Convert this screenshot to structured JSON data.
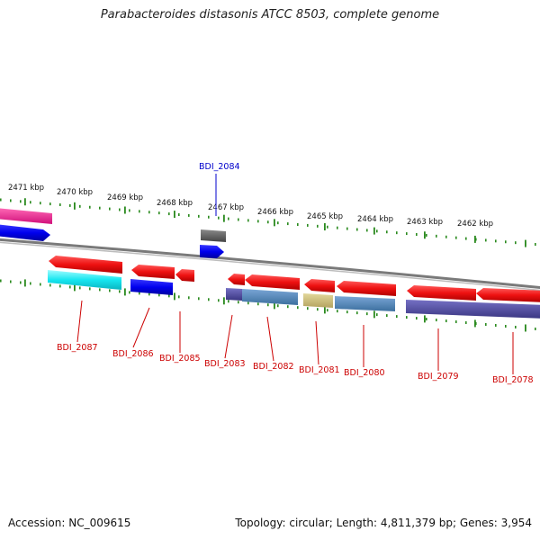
{
  "title": "Parabacteroides distasonis ATCC 8503, complete genome",
  "footer": {
    "accession": "Accession: NC_009615",
    "summary": "Topology: circular; Length: 4,811,379 bp; Genes: 3,954"
  },
  "colors": {
    "forward_gene": "#e8101a",
    "reverse_gene": "#e8101a",
    "backbone": "#888888",
    "tick": "#2a8a1e",
    "label_red": "#cc0000",
    "label_blue": "#0000cc"
  },
  "scale": {
    "labels": [
      {
        "text": "2471 kbp"
      },
      {
        "text": "2470 kbp"
      },
      {
        "text": "2469 kbp"
      },
      {
        "text": "2468 kbp"
      },
      {
        "text": "2467 kbp"
      },
      {
        "text": "2466 kbp"
      },
      {
        "text": "2465 kbp"
      },
      {
        "text": "2464 kbp"
      },
      {
        "text": "2463 kbp"
      },
      {
        "text": "2462 kbp"
      }
    ]
  },
  "genes": [
    {
      "label": "BDI_2087",
      "color_name": "red"
    },
    {
      "label": "BDI_2086",
      "color_name": "red"
    },
    {
      "label": "BDI_2085",
      "color_name": "red"
    },
    {
      "label": "BDI_2084",
      "color_name": "blue"
    },
    {
      "label": "BDI_2083",
      "color_name": "red"
    },
    {
      "label": "BDI_2082",
      "color_name": "red"
    },
    {
      "label": "BDI_2081",
      "color_name": "red"
    },
    {
      "label": "BDI_2080",
      "color_name": "red"
    },
    {
      "label": "BDI_2079",
      "color_name": "red"
    },
    {
      "label": "BDI_2078",
      "color_name": "red"
    }
  ]
}
